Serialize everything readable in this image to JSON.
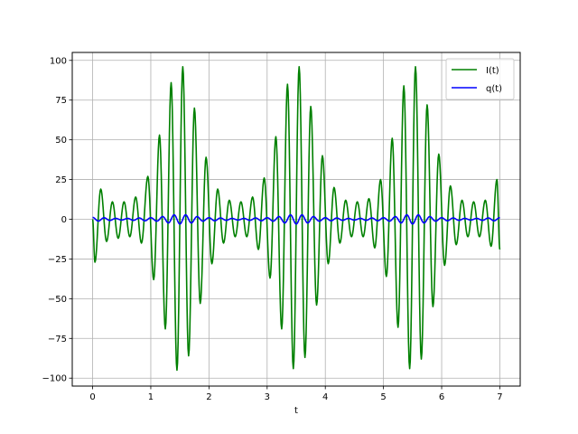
{
  "chart_data": {
    "type": "line",
    "title": "",
    "xlabel": "t",
    "ylabel": "",
    "xlim": [
      -0.35,
      7.35
    ],
    "ylim": [
      -105,
      105
    ],
    "xticks": [
      0,
      1,
      2,
      3,
      4,
      5,
      6,
      7
    ],
    "yticks": [
      -100,
      -75,
      -50,
      -25,
      0,
      25,
      50,
      75,
      100
    ],
    "xtick_labels": [
      "0",
      "1",
      "2",
      "3",
      "4",
      "5",
      "6",
      "7"
    ],
    "ytick_labels": [
      "−100",
      "−75",
      "−50",
      "−25",
      "0",
      "25",
      "50",
      "75",
      "100"
    ],
    "grid": true,
    "legend_position": "upper right",
    "series": [
      {
        "name": "I(t)",
        "color": "#008000",
        "x_start": 0,
        "x_end": 7,
        "extrema": [
          [
            0.0,
            0
          ],
          [
            0.04,
            -27
          ],
          [
            0.14,
            19
          ],
          [
            0.24,
            -14
          ],
          [
            0.34,
            11
          ],
          [
            0.44,
            -12
          ],
          [
            0.54,
            11
          ],
          [
            0.64,
            -11
          ],
          [
            0.74,
            14
          ],
          [
            0.84,
            -15
          ],
          [
            0.95,
            27
          ],
          [
            1.05,
            -38
          ],
          [
            1.15,
            53
          ],
          [
            1.25,
            -69
          ],
          [
            1.35,
            86
          ],
          [
            1.45,
            -95
          ],
          [
            1.55,
            96
          ],
          [
            1.65,
            -86
          ],
          [
            1.75,
            70
          ],
          [
            1.85,
            -53
          ],
          [
            1.95,
            39
          ],
          [
            2.05,
            -28
          ],
          [
            2.15,
            19
          ],
          [
            2.25,
            -15
          ],
          [
            2.35,
            12
          ],
          [
            2.45,
            -11
          ],
          [
            2.55,
            11
          ],
          [
            2.65,
            -11
          ],
          [
            2.75,
            14
          ],
          [
            2.85,
            -19
          ],
          [
            2.95,
            26
          ],
          [
            3.05,
            -37
          ],
          [
            3.15,
            52
          ],
          [
            3.25,
            -69
          ],
          [
            3.35,
            85
          ],
          [
            3.45,
            -94
          ],
          [
            3.55,
            96
          ],
          [
            3.65,
            -87
          ],
          [
            3.75,
            71
          ],
          [
            3.85,
            -54
          ],
          [
            3.95,
            40
          ],
          [
            4.05,
            -28
          ],
          [
            4.15,
            20
          ],
          [
            4.25,
            -15
          ],
          [
            4.35,
            12
          ],
          [
            4.45,
            -11
          ],
          [
            4.55,
            11
          ],
          [
            4.65,
            -11
          ],
          [
            4.75,
            13
          ],
          [
            4.85,
            -18
          ],
          [
            4.95,
            25
          ],
          [
            5.05,
            -36
          ],
          [
            5.15,
            51
          ],
          [
            5.25,
            -68
          ],
          [
            5.35,
            84
          ],
          [
            5.45,
            -94
          ],
          [
            5.55,
            96
          ],
          [
            5.65,
            -88
          ],
          [
            5.75,
            72
          ],
          [
            5.85,
            -55
          ],
          [
            5.95,
            41
          ],
          [
            6.05,
            -29
          ],
          [
            6.15,
            21
          ],
          [
            6.25,
            -16
          ],
          [
            6.35,
            12
          ],
          [
            6.45,
            -11
          ],
          [
            6.55,
            11
          ],
          [
            6.65,
            -11
          ],
          [
            6.75,
            12
          ],
          [
            6.85,
            -17
          ],
          [
            6.95,
            25
          ],
          [
            7.0,
            -19
          ]
        ]
      },
      {
        "name": "q(t)",
        "color": "#0000ff",
        "x_start": 0,
        "x_end": 7,
        "amplitude_peaks": [
          [
            0.0,
            1.2
          ],
          [
            0.5,
            0.5
          ],
          [
            1.0,
            1.0
          ],
          [
            1.5,
            3.0
          ],
          [
            2.0,
            1.0
          ],
          [
            2.5,
            0.5
          ],
          [
            3.0,
            1.0
          ],
          [
            3.5,
            3.0
          ],
          [
            4.0,
            1.0
          ],
          [
            4.5,
            0.5
          ],
          [
            5.0,
            1.0
          ],
          [
            5.5,
            3.0
          ],
          [
            6.0,
            1.0
          ],
          [
            6.5,
            0.5
          ],
          [
            7.0,
            1.0
          ]
        ],
        "period": 0.2
      }
    ]
  }
}
